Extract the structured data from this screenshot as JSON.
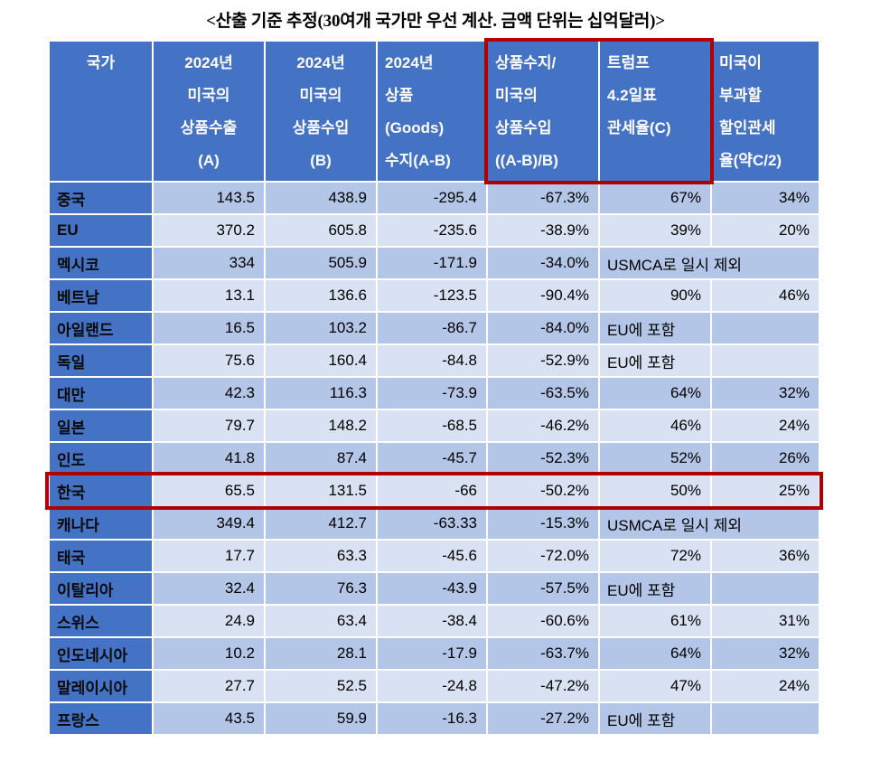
{
  "title": "<산출 기준 추정(30여개 국가만 우선 계산. 금액 단위는 십억달러)>",
  "colors": {
    "header_bg": "#4472C4",
    "row_band_a": "#B4C6E7",
    "row_band_b": "#D9E2F2",
    "highlight_border": "#B00000",
    "header_text": "#FFFFFF",
    "country_text": "#0A0A0A"
  },
  "table": {
    "columns": [
      {
        "id": "country",
        "align": "center",
        "highlighted": false,
        "header_lines": [
          "국가"
        ]
      },
      {
        "id": "export_a",
        "align": "center",
        "highlighted": false,
        "header_lines": [
          "2024년",
          "미국의",
          "상품수출",
          "(A)"
        ]
      },
      {
        "id": "import_b",
        "align": "center",
        "highlighted": false,
        "header_lines": [
          "2024년",
          "미국의",
          "상품수입",
          "(B)"
        ]
      },
      {
        "id": "balance",
        "align": "left",
        "highlighted": false,
        "header_lines": [
          "2024년",
          "상품",
          "(Goods)",
          "수지(A-B)"
        ]
      },
      {
        "id": "ratio",
        "align": "left",
        "highlighted": true,
        "header_lines": [
          "상품수지/",
          "미국의",
          "상품수입",
          "((A-B)/B)"
        ]
      },
      {
        "id": "tariff_c",
        "align": "left",
        "highlighted": true,
        "header_lines": [
          "트럼프",
          "4.2일표",
          "관세율(C)"
        ]
      },
      {
        "id": "discount",
        "align": "left",
        "highlighted": false,
        "header_lines": [
          "미국이",
          "부과할",
          "할인관세",
          "율(약C/2)"
        ]
      }
    ],
    "rows": [
      {
        "country": "중국",
        "export_a": "143.5",
        "import_b": "438.9",
        "balance": "-295.4",
        "ratio": "-67.3%",
        "tariff_c": "67%",
        "discount": "34%"
      },
      {
        "country": "EU",
        "export_a": "370.2",
        "import_b": "605.8",
        "balance": "-235.6",
        "ratio": "-38.9%",
        "tariff_c": "39%",
        "discount": "20%"
      },
      {
        "country": "멕시코",
        "export_a": "334",
        "import_b": "505.9",
        "balance": "-171.9",
        "ratio": "-34.0%",
        "tariff_c": "USMCA로  일시  제외",
        "span": true
      },
      {
        "country": "베트남",
        "export_a": "13.1",
        "import_b": "136.6",
        "balance": "-123.5",
        "ratio": "-90.4%",
        "tariff_c": "90%",
        "discount": "46%"
      },
      {
        "country": "아일랜드",
        "export_a": "16.5",
        "import_b": "103.2",
        "balance": "-86.7",
        "ratio": "-84.0%",
        "tariff_c": "EU에  포함",
        "discount": ""
      },
      {
        "country": "독일",
        "export_a": "75.6",
        "import_b": "160.4",
        "balance": "-84.8",
        "ratio": "-52.9%",
        "tariff_c": "EU에  포함",
        "discount": ""
      },
      {
        "country": "대만",
        "export_a": "42.3",
        "import_b": "116.3",
        "balance": "-73.9",
        "ratio": "-63.5%",
        "tariff_c": "64%",
        "discount": "32%"
      },
      {
        "country": "일본",
        "export_a": "79.7",
        "import_b": "148.2",
        "balance": "-68.5",
        "ratio": "-46.2%",
        "tariff_c": "46%",
        "discount": "24%"
      },
      {
        "country": "인도",
        "export_a": "41.8",
        "import_b": "87.4",
        "balance": "-45.7",
        "ratio": "-52.3%",
        "tariff_c": "52%",
        "discount": "26%"
      },
      {
        "country": "한국",
        "export_a": "65.5",
        "import_b": "131.5",
        "balance": "-66",
        "ratio": "-50.2%",
        "tariff_c": "50%",
        "discount": "25%",
        "highlighted": true
      },
      {
        "country": "캐나다",
        "export_a": "349.4",
        "import_b": "412.7",
        "balance": "-63.33",
        "ratio": "-15.3%",
        "tariff_c": "USMCA로  일시  제외",
        "span": true
      },
      {
        "country": "태국",
        "export_a": "17.7",
        "import_b": "63.3",
        "balance": "-45.6",
        "ratio": "-72.0%",
        "tariff_c": "72%",
        "discount": "36%"
      },
      {
        "country": "이탈리아",
        "export_a": "32.4",
        "import_b": "76.3",
        "balance": "-43.9",
        "ratio": "-57.5%",
        "tariff_c": "EU에  포함",
        "discount": ""
      },
      {
        "country": "스위스",
        "export_a": "24.9",
        "import_b": "63.4",
        "balance": "-38.4",
        "ratio": "-60.6%",
        "tariff_c": "61%",
        "discount": "31%"
      },
      {
        "country": "인도네시아",
        "export_a": "10.2",
        "import_b": "28.1",
        "balance": "-17.9",
        "ratio": "-63.7%",
        "tariff_c": "64%",
        "discount": "32%"
      },
      {
        "country": "말레이시아",
        "export_a": "27.7",
        "import_b": "52.5",
        "balance": "-24.8",
        "ratio": "-47.2%",
        "tariff_c": "47%",
        "discount": "24%"
      },
      {
        "country": "프랑스",
        "export_a": "43.5",
        "import_b": "59.9",
        "balance": "-16.3",
        "ratio": "-27.2%",
        "tariff_c": "EU에  포함",
        "discount": ""
      }
    ]
  }
}
